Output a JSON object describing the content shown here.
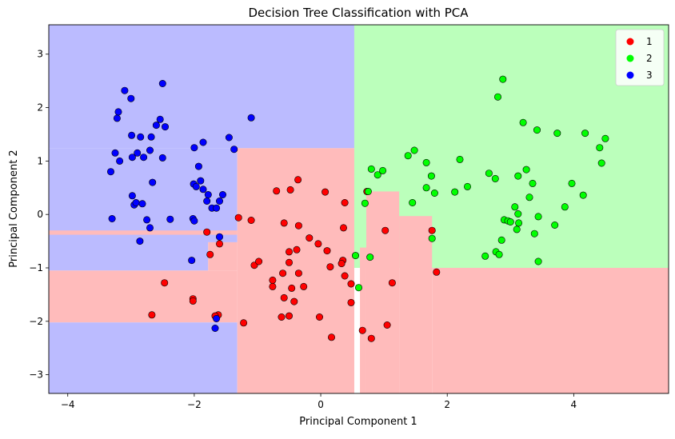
{
  "chart_data": {
    "type": "scatter",
    "title": "Decision Tree Classification with PCA",
    "xlabel": "Principal Component 1",
    "ylabel": "Principal Component 2",
    "xlim": [
      -4.3,
      5.5
    ],
    "ylim": [
      -3.35,
      3.55
    ],
    "xticks": [
      -4,
      -2,
      0,
      2,
      4
    ],
    "yticks": [
      -3,
      -2,
      -1,
      0,
      1,
      2,
      3
    ],
    "grid": false,
    "legend_position": "top-right",
    "colors": {
      "1": "#ff0000",
      "2": "#00ff00",
      "3": "#0000ff"
    },
    "region_colors": {
      "1": "#ffbbbb",
      "2": "#bbffbb",
      "3": "#bbbbff"
    },
    "decision_regions": [
      {
        "class": "3",
        "x": [
          -4.3,
          0.53
        ],
        "y": [
          1.24,
          3.55
        ]
      },
      {
        "class": "3",
        "x": [
          -4.3,
          -1.32
        ],
        "y": [
          -0.52,
          1.24
        ]
      },
      {
        "class": "3",
        "x": [
          -4.3,
          -1.32
        ],
        "y": [
          -3.35,
          -2.02
        ]
      },
      {
        "class": "3",
        "x": [
          -4.3,
          -1.78
        ],
        "y": [
          -1.05,
          -0.38
        ]
      },
      {
        "class": "2",
        "x": [
          0.53,
          5.5
        ],
        "y": [
          -1.0,
          3.55
        ]
      },
      {
        "class": "1",
        "x": [
          -1.32,
          0.53
        ],
        "y": [
          -3.35,
          1.24
        ]
      },
      {
        "class": "1",
        "x": [
          -4.3,
          -1.32
        ],
        "y": [
          -2.02,
          -1.05
        ]
      },
      {
        "class": "1",
        "x": [
          -1.78,
          -1.32
        ],
        "y": [
          -1.05,
          -0.52
        ]
      },
      {
        "class": "1",
        "x": [
          -4.3,
          -1.32
        ],
        "y": [
          -0.38,
          -0.3
        ]
      },
      {
        "class": "1",
        "x": [
          0.62,
          0.72
        ],
        "y": [
          -3.35,
          -0.62
        ]
      },
      {
        "class": "1",
        "x": [
          0.72,
          1.24
        ],
        "y": [
          -3.35,
          0.43
        ]
      },
      {
        "class": "1",
        "x": [
          1.24,
          1.76
        ],
        "y": [
          -3.35,
          -0.03
        ]
      },
      {
        "class": "1",
        "x": [
          1.76,
          5.5
        ],
        "y": [
          -3.35,
          -1.0
        ]
      }
    ],
    "series": [
      {
        "name": "1",
        "points": [
          [
            -2.47,
            -1.28
          ],
          [
            -2.67,
            -1.88
          ],
          [
            -2.02,
            -1.58
          ],
          [
            -2.02,
            -1.62
          ],
          [
            -1.62,
            -1.88
          ],
          [
            -1.67,
            -1.9
          ],
          [
            -1.22,
            -2.03
          ],
          [
            -1.6,
            -0.55
          ],
          [
            -1.75,
            -0.75
          ],
          [
            -1.8,
            -0.33
          ],
          [
            -1.3,
            -0.06
          ],
          [
            -1.1,
            -0.11
          ],
          [
            -1.05,
            -0.95
          ],
          [
            -0.98,
            -0.88
          ],
          [
            -0.76,
            -1.23
          ],
          [
            -0.76,
            -1.35
          ],
          [
            -0.7,
            0.44
          ],
          [
            -0.6,
            -1.1
          ],
          [
            -0.62,
            -1.92
          ],
          [
            -0.58,
            -0.16
          ],
          [
            -0.5,
            -0.7
          ],
          [
            -0.5,
            -0.9
          ],
          [
            -0.48,
            0.46
          ],
          [
            -0.46,
            -1.38
          ],
          [
            -0.42,
            -1.63
          ],
          [
            -0.38,
            -0.66
          ],
          [
            -0.36,
            0.65
          ],
          [
            -0.35,
            -0.21
          ],
          [
            -0.35,
            -1.1
          ],
          [
            -0.27,
            -1.35
          ],
          [
            -0.18,
            -0.44
          ],
          [
            -0.04,
            -0.55
          ],
          [
            -0.02,
            -1.92
          ],
          [
            0.07,
            0.42
          ],
          [
            0.1,
            -0.68
          ],
          [
            0.15,
            -0.98
          ],
          [
            0.17,
            -2.3
          ],
          [
            0.35,
            -0.86
          ],
          [
            0.36,
            -0.25
          ],
          [
            0.38,
            0.22
          ],
          [
            0.38,
            -1.15
          ],
          [
            0.48,
            -1.3
          ],
          [
            0.48,
            -1.65
          ],
          [
            0.33,
            -0.92
          ],
          [
            -0.58,
            -1.56
          ],
          [
            -0.5,
            -1.9
          ],
          [
            0.66,
            -2.17
          ],
          [
            0.73,
            0.43
          ],
          [
            0.8,
            -2.32
          ],
          [
            1.02,
            -0.3
          ],
          [
            1.05,
            -2.07
          ],
          [
            1.13,
            -1.28
          ],
          [
            1.76,
            -0.3
          ],
          [
            1.83,
            -1.08
          ]
        ]
      },
      {
        "name": "2",
        "points": [
          [
            0.55,
            -0.77
          ],
          [
            0.6,
            -1.37
          ],
          [
            0.7,
            0.21
          ],
          [
            0.75,
            0.43
          ],
          [
            0.8,
            0.85
          ],
          [
            0.9,
            0.74
          ],
          [
            0.98,
            0.82
          ],
          [
            1.38,
            1.1
          ],
          [
            1.48,
            1.2
          ],
          [
            1.45,
            0.22
          ],
          [
            1.67,
            0.97
          ],
          [
            1.67,
            0.5
          ],
          [
            1.75,
            0.72
          ],
          [
            1.8,
            0.4
          ],
          [
            1.76,
            -0.45
          ],
          [
            2.12,
            0.42
          ],
          [
            2.2,
            1.03
          ],
          [
            2.32,
            0.52
          ],
          [
            2.6,
            -0.78
          ],
          [
            2.66,
            0.77
          ],
          [
            2.76,
            0.67
          ],
          [
            2.77,
            -0.7
          ],
          [
            2.8,
            2.2
          ],
          [
            2.82,
            -0.75
          ],
          [
            2.86,
            -0.48
          ],
          [
            2.88,
            2.53
          ],
          [
            2.9,
            -0.1
          ],
          [
            2.96,
            -0.12
          ],
          [
            3.0,
            -0.14
          ],
          [
            3.07,
            0.14
          ],
          [
            3.1,
            -0.28
          ],
          [
            3.12,
            0.01
          ],
          [
            3.12,
            0.72
          ],
          [
            3.13,
            -0.16
          ],
          [
            3.2,
            1.72
          ],
          [
            3.25,
            0.84
          ],
          [
            3.3,
            0.32
          ],
          [
            3.35,
            0.58
          ],
          [
            3.38,
            -0.36
          ],
          [
            3.42,
            1.58
          ],
          [
            3.44,
            -0.88
          ],
          [
            3.44,
            -0.04
          ],
          [
            3.7,
            -0.2
          ],
          [
            3.74,
            1.52
          ],
          [
            3.86,
            0.14
          ],
          [
            3.97,
            0.58
          ],
          [
            4.15,
            0.36
          ],
          [
            4.18,
            1.52
          ],
          [
            4.41,
            1.25
          ],
          [
            4.44,
            0.96
          ],
          [
            4.5,
            1.42
          ],
          [
            0.78,
            -0.8
          ]
        ]
      },
      {
        "name": "3",
        "points": [
          [
            -3.32,
            0.8
          ],
          [
            -3.3,
            -0.08
          ],
          [
            -3.25,
            1.15
          ],
          [
            -3.22,
            1.8
          ],
          [
            -3.2,
            1.92
          ],
          [
            -3.18,
            1.0
          ],
          [
            -3.1,
            2.32
          ],
          [
            -3.0,
            2.17
          ],
          [
            -2.99,
            1.48
          ],
          [
            -2.98,
            0.35
          ],
          [
            -2.98,
            1.07
          ],
          [
            -2.95,
            0.18
          ],
          [
            -2.92,
            0.22
          ],
          [
            -2.9,
            1.15
          ],
          [
            -2.86,
            -0.5
          ],
          [
            -2.85,
            1.45
          ],
          [
            -2.82,
            0.2
          ],
          [
            -2.8,
            1.07
          ],
          [
            -2.75,
            -0.1
          ],
          [
            -2.7,
            1.2
          ],
          [
            -2.7,
            -0.25
          ],
          [
            -2.68,
            1.45
          ],
          [
            -2.66,
            0.6
          ],
          [
            -2.6,
            1.67
          ],
          [
            -2.54,
            1.78
          ],
          [
            -2.5,
            2.45
          ],
          [
            -2.5,
            1.06
          ],
          [
            -2.46,
            1.64
          ],
          [
            -2.38,
            -0.09
          ],
          [
            -2.04,
            -0.86
          ],
          [
            -2.02,
            -0.08
          ],
          [
            -2.01,
            0.57
          ],
          [
            -2.0,
            1.25
          ],
          [
            -2.0,
            -0.12
          ],
          [
            -1.97,
            0.52
          ],
          [
            -1.93,
            0.9
          ],
          [
            -1.9,
            0.63
          ],
          [
            -1.86,
            1.35
          ],
          [
            -1.86,
            0.47
          ],
          [
            -1.8,
            0.25
          ],
          [
            -1.78,
            0.37
          ],
          [
            -1.72,
            0.12
          ],
          [
            -1.65,
            0.12
          ],
          [
            -1.6,
            -0.42
          ],
          [
            -1.6,
            0.25
          ],
          [
            -1.55,
            0.37
          ],
          [
            -1.45,
            1.44
          ],
          [
            -1.37,
            1.22
          ],
          [
            -1.1,
            1.81
          ],
          [
            -1.67,
            -2.13
          ],
          [
            -1.65,
            -1.95
          ]
        ]
      }
    ]
  }
}
